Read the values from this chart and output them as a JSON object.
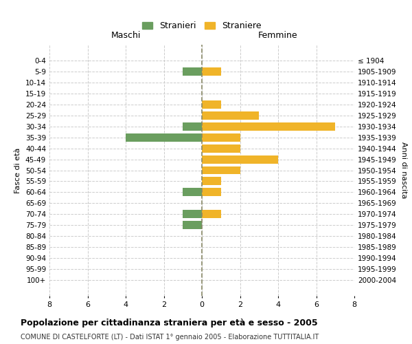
{
  "age_groups": [
    "0-4",
    "5-9",
    "10-14",
    "15-19",
    "20-24",
    "25-29",
    "30-34",
    "35-39",
    "40-44",
    "45-49",
    "50-54",
    "55-59",
    "60-64",
    "65-69",
    "70-74",
    "75-79",
    "80-84",
    "85-89",
    "90-94",
    "95-99",
    "100+"
  ],
  "birth_years": [
    "2000-2004",
    "1995-1999",
    "1990-1994",
    "1985-1989",
    "1980-1984",
    "1975-1979",
    "1970-1974",
    "1965-1969",
    "1960-1964",
    "1955-1959",
    "1950-1954",
    "1945-1949",
    "1940-1944",
    "1935-1939",
    "1930-1934",
    "1925-1929",
    "1920-1924",
    "1915-1919",
    "1910-1914",
    "1905-1909",
    "≤ 1904"
  ],
  "maschi": [
    0,
    1,
    0,
    0,
    0,
    0,
    1,
    4,
    0,
    0,
    0,
    0,
    1,
    0,
    1,
    1,
    0,
    0,
    0,
    0,
    0
  ],
  "femmine": [
    0,
    1,
    0,
    0,
    1,
    3,
    7,
    2,
    2,
    4,
    2,
    1,
    1,
    0,
    1,
    0,
    0,
    0,
    0,
    0,
    0
  ],
  "maschi_color": "#6a9e5f",
  "femmine_color": "#f0b429",
  "title": "Popolazione per cittadinanza straniera per età e sesso - 2005",
  "subtitle": "COMUNE DI CASTELFORTE (LT) - Dati ISTAT 1° gennaio 2005 - Elaborazione TUTTITALIA.IT",
  "xlabel_left": "Maschi",
  "xlabel_right": "Femmine",
  "ylabel_left": "Fasce di età",
  "ylabel_right": "Anni di nascita",
  "legend_maschi": "Stranieri",
  "legend_femmine": "Straniere",
  "xlim": 8,
  "background_color": "#ffffff",
  "grid_color": "#cccccc"
}
